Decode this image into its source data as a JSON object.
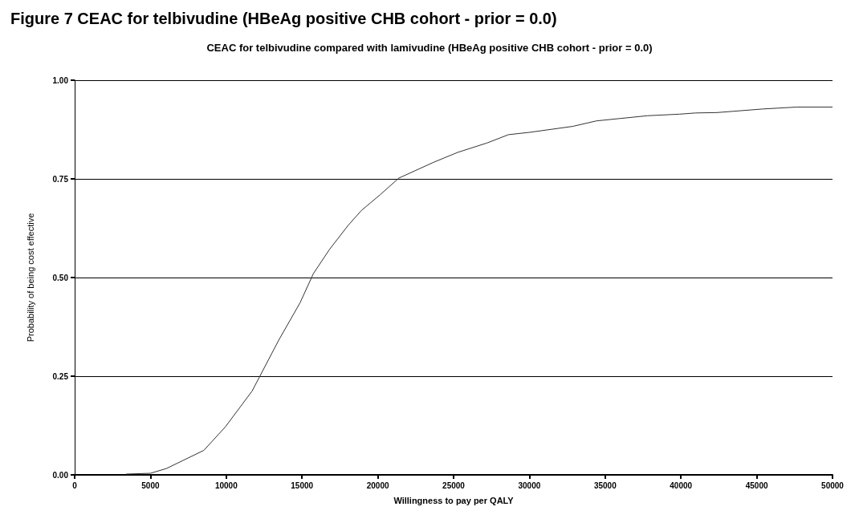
{
  "chart_data": {
    "type": "line",
    "title": "Figure 7 CEAC for telbivudine (HBeAg positive CHB cohort - prior = 0.0)",
    "subtitle": "CEAC for telbivudine compared with lamivudine (HBeAg positive CHB cohort - prior = 0.0)",
    "xlabel": "Willingness to pay per QALY",
    "ylabel": "Probability of being cost effective",
    "x": [
      3400,
      5000,
      6050,
      8520,
      9930,
      11700,
      12220,
      13460,
      14870,
      15750,
      16810,
      18040,
      18920,
      20160,
      21390,
      23680,
      25260,
      27210,
      28620,
      30030,
      32850,
      34440,
      37790,
      39910,
      40970,
      42370,
      45370,
      47660,
      50000
    ],
    "series": [
      {
        "color": "#333333",
        "values": [
          0.002,
          0.004,
          0.016,
          0.062,
          0.121,
          0.212,
          0.25,
          0.341,
          0.436,
          0.51,
          0.571,
          0.632,
          0.67,
          0.71,
          0.752,
          0.792,
          0.817,
          0.841,
          0.862,
          0.868,
          0.883,
          0.897,
          0.91,
          0.914,
          0.917,
          0.918,
          0.927,
          0.932,
          0.932
        ]
      }
    ],
    "xlim": [
      0,
      50000
    ],
    "xticks": [
      0,
      5000,
      10000,
      15000,
      20000,
      25000,
      30000,
      35000,
      40000,
      45000,
      50000
    ],
    "ylim": [
      0,
      1
    ],
    "yticks": [
      {
        "value": 0,
        "label": "0.00"
      },
      {
        "value": 0.25,
        "label": "0.25"
      },
      {
        "value": 0.5,
        "label": "0.50"
      },
      {
        "value": 0.75,
        "label": "0.75"
      },
      {
        "value": 1,
        "label": "1.00"
      }
    ],
    "grid": "y",
    "marker": "none",
    "line_style": "solid"
  }
}
